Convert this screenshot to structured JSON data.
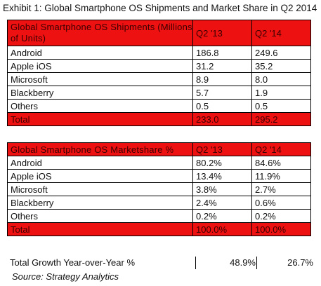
{
  "title": "Exhibit 1: Global Smartphone OS Shipments and Market Share in Q2 2014",
  "shipments_table": {
    "header": [
      "Global Smartphone OS Shipments (Millions of Units)",
      "Q2 '13",
      "Q2 '14"
    ],
    "rows": [
      [
        "Android",
        "186.8",
        "249.6"
      ],
      [
        "Apple iOS",
        "31.2",
        "35.2"
      ],
      [
        "Microsoft",
        "8.9",
        "8.0"
      ],
      [
        "Blackberry",
        "5.7",
        "1.9"
      ],
      [
        "Others",
        "0.5",
        "0.5"
      ]
    ],
    "total": [
      "Total",
      "233.0",
      "295.2"
    ]
  },
  "marketshare_table": {
    "header": [
      "Global Smartphone OS Marketshare %",
      "Q2 '13",
      "Q2 '14"
    ],
    "rows": [
      [
        "Android",
        "80.2%",
        "84.6%"
      ],
      [
        "Apple iOS",
        "13.4%",
        "11.9%"
      ],
      [
        "Microsoft",
        "3.8%",
        "2.7%"
      ],
      [
        "Blackberry",
        "2.4%",
        "0.6%"
      ],
      [
        "Others",
        "0.2%",
        "0.2%"
      ]
    ],
    "total": [
      "Total",
      "100.0%",
      "100.0%"
    ]
  },
  "growth": {
    "label": "Total Growth Year-over-Year %",
    "values": [
      "48.9%",
      "26.7%"
    ]
  },
  "source": "Source: Strategy Analytics",
  "colors": {
    "header_red": "#ee1111",
    "header_text": "#3a0000"
  },
  "chart_data": [
    {
      "type": "table",
      "title": "Global Smartphone OS Shipments (Millions of Units)",
      "columns": [
        "Q2 '13",
        "Q2 '14"
      ],
      "categories": [
        "Android",
        "Apple iOS",
        "Microsoft",
        "Blackberry",
        "Others",
        "Total"
      ],
      "series": [
        {
          "name": "Q2 '13",
          "values": [
            186.8,
            31.2,
            8.9,
            5.7,
            0.5,
            233.0
          ]
        },
        {
          "name": "Q2 '14",
          "values": [
            249.6,
            35.2,
            8.0,
            1.9,
            0.5,
            295.2
          ]
        }
      ]
    },
    {
      "type": "table",
      "title": "Global Smartphone OS Marketshare %",
      "columns": [
        "Q2 '13",
        "Q2 '14"
      ],
      "categories": [
        "Android",
        "Apple iOS",
        "Microsoft",
        "Blackberry",
        "Others",
        "Total"
      ],
      "series": [
        {
          "name": "Q2 '13",
          "values": [
            80.2,
            13.4,
            3.8,
            2.4,
            0.2,
            100.0
          ]
        },
        {
          "name": "Q2 '14",
          "values": [
            84.6,
            11.9,
            2.7,
            0.6,
            0.2,
            100.0
          ]
        }
      ]
    },
    {
      "type": "table",
      "title": "Total Growth Year-over-Year %",
      "columns": [
        "Q2 '13",
        "Q2 '14"
      ],
      "values": [
        48.9,
        26.7
      ]
    }
  ]
}
